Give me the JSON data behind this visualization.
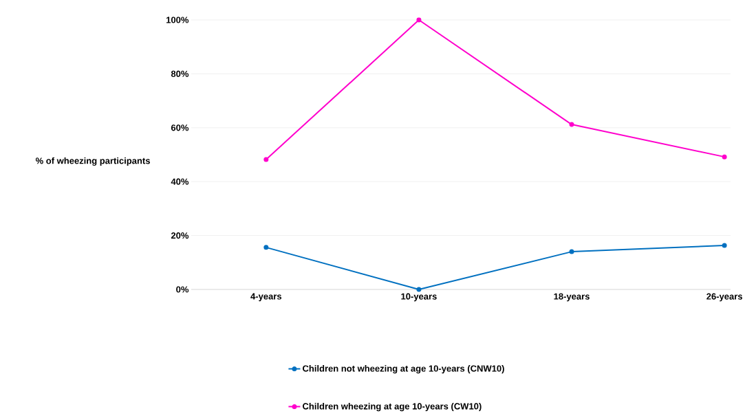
{
  "chart_data": {
    "type": "line",
    "ylabel": "% of wheezing participants",
    "categories": [
      "4-years",
      "10-years",
      "18-years",
      "26-years"
    ],
    "series": [
      {
        "name": "Children not wheezing at age 10-years (CNW10)",
        "color": "#0070c0",
        "values": [
          15.6,
          0,
          14.0,
          16.3
        ]
      },
      {
        "name": "Children wheezing at age 10-years (CW10)",
        "color": "#ff00cc",
        "values": [
          48.2,
          100,
          61.2,
          49.2
        ]
      }
    ],
    "ylim": [
      0,
      100
    ],
    "yticks": [
      {
        "value": 0,
        "label": "0%"
      },
      {
        "value": 20,
        "label": "20%"
      },
      {
        "value": 40,
        "label": "40%"
      },
      {
        "value": 60,
        "label": "60%"
      },
      {
        "value": 80,
        "label": "80%"
      },
      {
        "value": 100,
        "label": "100%"
      }
    ],
    "grid": "y",
    "legend": "bottom",
    "marker": "circle",
    "line_style": "solid"
  }
}
